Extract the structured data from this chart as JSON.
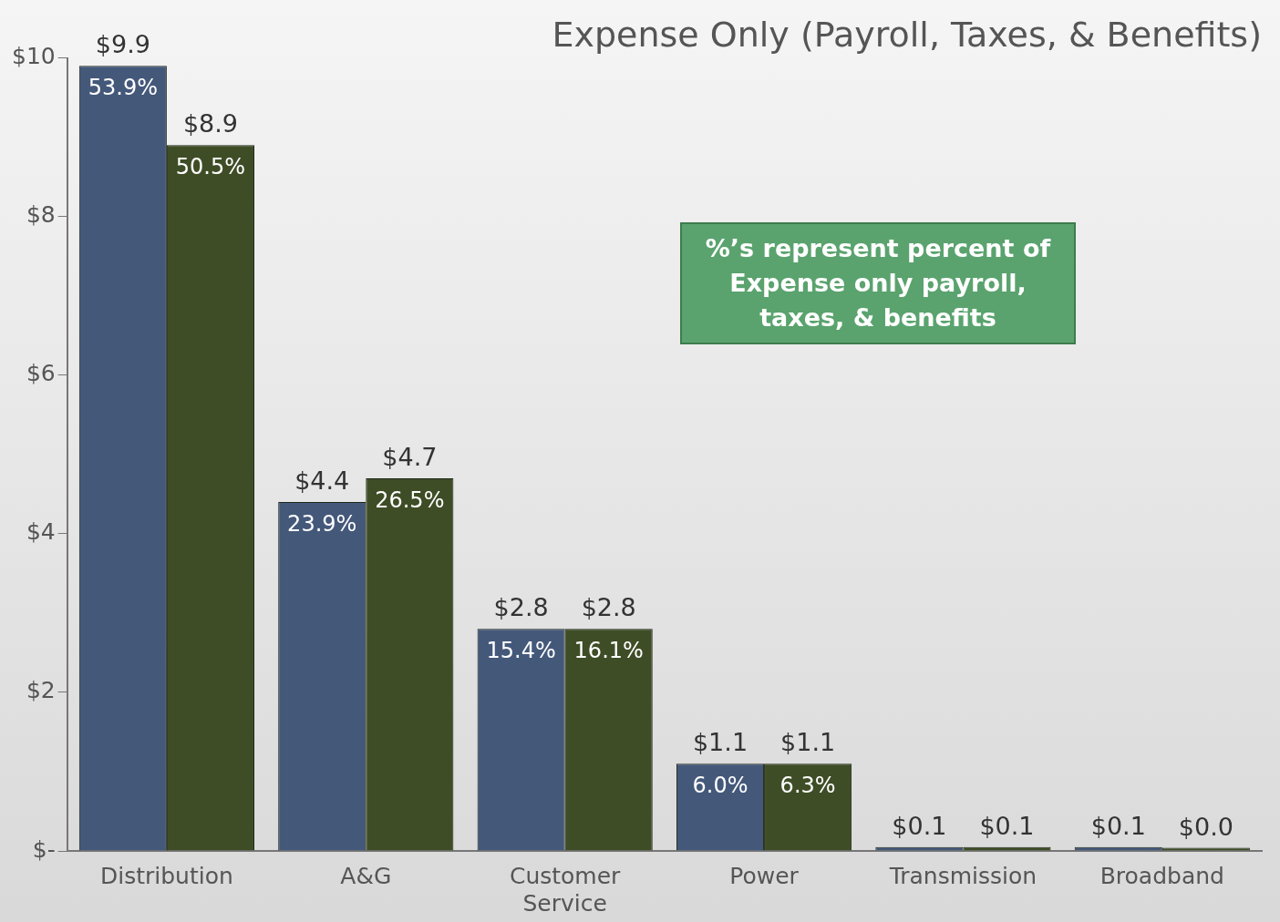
{
  "chart_data": {
    "type": "bar",
    "title": "Expense Only (Payroll, Taxes, & Benefits)",
    "categories": [
      "Distribution",
      "A&G",
      "Customer Service",
      "Power",
      "Transmission",
      "Broadband"
    ],
    "series": [
      {
        "color": "#44587a",
        "values": [
          9.9,
          4.4,
          2.8,
          1.1,
          0.05,
          0.05
        ],
        "value_labels": [
          "$9.9",
          "$4.4",
          "$2.8",
          "$1.1",
          "$0.1",
          "$0.1"
        ]
      },
      {
        "color": "#3f4d26",
        "values": [
          8.9,
          4.7,
          2.8,
          1.1,
          0.05,
          0.04
        ],
        "value_labels": [
          "$8.9",
          "$4.7",
          "$2.8",
          "$1.1",
          "$0.1",
          "$0.0"
        ]
      }
    ],
    "ylim": [
      0,
      10
    ],
    "yticks": [
      {
        "value": 0,
        "label": "$-"
      },
      {
        "value": 2,
        "label": "$2"
      },
      {
        "value": 4,
        "label": "$4"
      },
      {
        "value": 6,
        "label": "$6"
      },
      {
        "value": 8,
        "label": "$8"
      },
      {
        "value": 10,
        "label": "$10"
      }
    ],
    "grid": false,
    "legend": false,
    "annotations": [
      {
        "text": "53.9%",
        "x": "Distribution",
        "y": 9.9
      },
      {
        "text": "50.5%",
        "x": "Distribution",
        "y": 8.9
      },
      {
        "text": "23.9%",
        "x": "A&G",
        "y": 4.4
      },
      {
        "text": "26.5%",
        "x": "A&G",
        "y": 4.7
      },
      {
        "text": "15.4%",
        "x": "Customer Service",
        "y": 2.8
      },
      {
        "text": "16.1%",
        "x": "Customer Service",
        "y": 2.8
      },
      {
        "text": "6.0%",
        "x": "Power",
        "y": 1.1
      },
      {
        "text": "6.3%",
        "x": "Power",
        "y": 1.1
      },
      "%’s represent percent of Expense only payroll, taxes, & benefits"
    ]
  }
}
